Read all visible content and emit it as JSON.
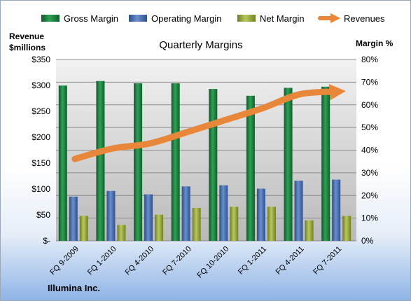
{
  "chart_data": {
    "type": "bar",
    "title": "Quarterly Margins",
    "company": "Illumina Inc.",
    "ylabel_left": [
      "Revenue",
      "$millions"
    ],
    "ylabel_right": "Margin %",
    "categories": [
      "FQ 9-2009",
      "FQ 1-2010",
      "FQ 4-2010",
      "FQ 7-2010",
      "FQ 10-2010",
      "FQ 1-2011",
      "FQ 4-2011",
      "FQ 7-2011"
    ],
    "ylim_left": [
      0,
      350
    ],
    "ylim_right": [
      0,
      80
    ],
    "left_ticks": [
      "$-",
      "$50",
      "$100",
      "$150",
      "$200",
      "$250",
      "$300",
      "$350"
    ],
    "right_ticks": [
      "0%",
      "10%",
      "20%",
      "30%",
      "40%",
      "50%",
      "60%",
      "70%",
      "80%"
    ],
    "legend_position": "top",
    "grid": true,
    "series": [
      {
        "name": "Gross Margin",
        "axis": "right",
        "color": "#1e7a3c",
        "values": [
          68.5,
          70.5,
          69.5,
          69.5,
          67.0,
          64.0,
          67.5,
          68.0
        ]
      },
      {
        "name": "Operating Margin",
        "axis": "right",
        "color": "#3e66a8",
        "values": [
          19.5,
          22.0,
          20.5,
          24.0,
          24.5,
          23.0,
          26.5,
          27.0
        ]
      },
      {
        "name": "Net Margin",
        "axis": "right",
        "color": "#97a83a",
        "values": [
          11.0,
          7.0,
          11.5,
          14.5,
          15.0,
          15.0,
          9.0,
          11.0
        ]
      },
      {
        "name": "Revenues",
        "axis": "left",
        "type": "line",
        "color": "#e8873a",
        "values": [
          158,
          178,
          188,
          210,
          233,
          256,
          283,
          288
        ]
      }
    ]
  }
}
